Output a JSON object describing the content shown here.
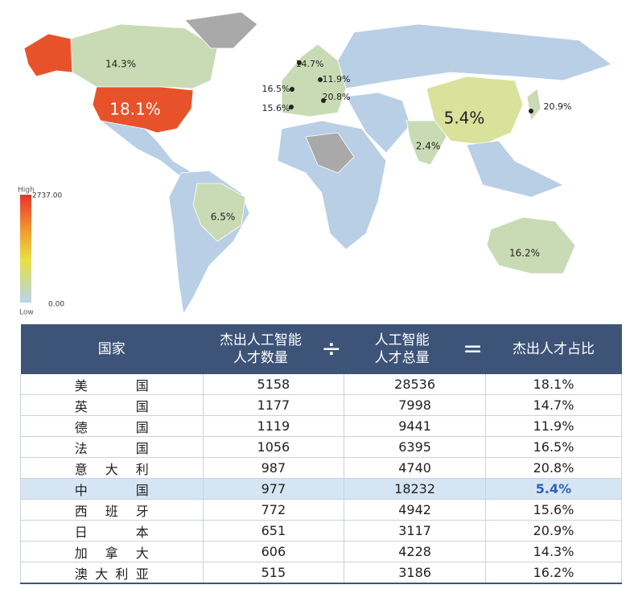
{
  "map": {
    "labels": [
      "14.3%",
      "18.1%",
      "14.7%",
      "11.9%",
      "16.5%",
      "20.8%",
      "15.6%",
      "5.4%",
      "20.9%",
      "2.4%",
      "6.5%",
      "16.2%"
    ],
    "legend": {
      "high_label": "High",
      "high_value": "2737.00",
      "low_label": "Low",
      "low_value": "0.00"
    }
  },
  "table": {
    "header": [
      [
        "国家"
      ],
      [
        "杰出人工智能",
        "人才数量"
      ],
      [
        "÷"
      ],
      [
        "人工智能",
        "人才总量"
      ],
      [
        "="
      ],
      [
        "杰出人才占比"
      ]
    ],
    "rows": [
      [
        "美国",
        "5158",
        "28536",
        "18.1%"
      ],
      [
        "英国",
        "1177",
        "7998",
        "14.7%"
      ],
      [
        "德国",
        "1119",
        "9441",
        "11.9%"
      ],
      [
        "法国",
        "1056",
        "6395",
        "16.5%"
      ],
      [
        "意大利",
        "987",
        "4740",
        "20.8%"
      ],
      [
        "中国",
        "977",
        "18232",
        "5.4%"
      ],
      [
        "西班牙",
        "772",
        "4942",
        "15.6%"
      ],
      [
        "日本",
        "651",
        "3117",
        "20.9%"
      ],
      [
        "加拿大",
        "606",
        "4228",
        "14.3%"
      ],
      [
        "澳大利亚",
        "515",
        "3186",
        "16.2%"
      ]
    ]
  }
}
